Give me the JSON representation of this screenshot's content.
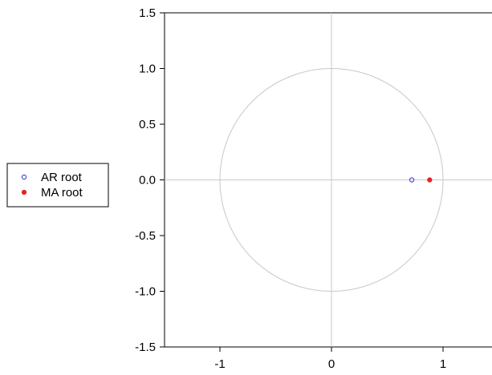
{
  "chart_data": {
    "type": "scatter",
    "title": "",
    "xlabel": "",
    "ylabel": "",
    "xlim": [
      -1.5,
      1.5
    ],
    "ylim": [
      -1.5,
      1.5
    ],
    "x_ticks": [
      -1,
      0,
      1
    ],
    "x_tick_labels": [
      "-1",
      "0",
      "1"
    ],
    "y_ticks": [
      1.5,
      1.0,
      0.5,
      0.0,
      -0.5,
      -1.0,
      -1.5
    ],
    "y_tick_labels": [
      "1.5",
      "1.0",
      "0.5",
      "0.0",
      "-0.5",
      "-1.0",
      "-1.5"
    ],
    "unit_circle": true,
    "reference_lines": {
      "x": 0,
      "y": 0
    },
    "legend_position": "left",
    "series": [
      {
        "name": "AR root",
        "marker": "open-circle",
        "color": "#4a4ad8",
        "points": [
          {
            "x": 0.72,
            "y": 0.0
          }
        ]
      },
      {
        "name": "MA root",
        "marker": "filled-circle",
        "color": "#e82020",
        "points": [
          {
            "x": 0.88,
            "y": 0.0
          }
        ]
      }
    ]
  },
  "legend": {
    "items": [
      {
        "label": "AR root"
      },
      {
        "label": "MA root"
      }
    ]
  },
  "colors": {
    "axis": "#000000",
    "reference_lines": "#c8c8c8",
    "unit_circle": "#c8c8c8"
  }
}
